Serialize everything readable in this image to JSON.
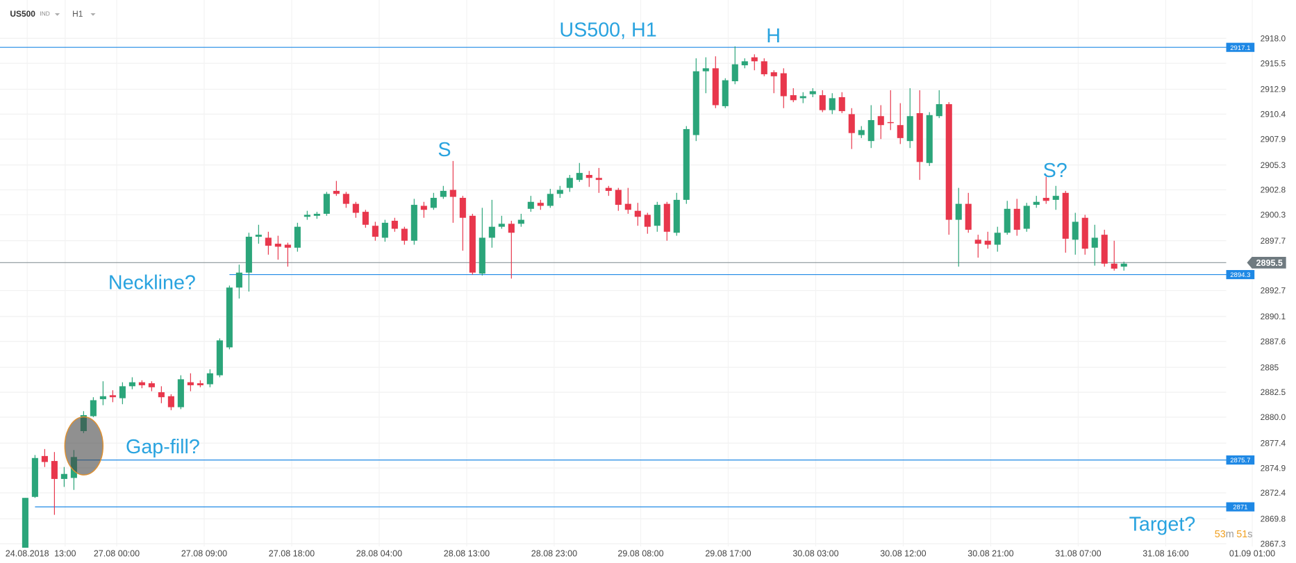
{
  "header": {
    "symbol": "US500",
    "market": "IND",
    "interval": "H1"
  },
  "countdown": [
    "53",
    "m",
    "51",
    "s"
  ],
  "chart_data": {
    "type": "candlestick",
    "annotations": [
      "US500, H1",
      "H",
      "S",
      "S?",
      "Neckline?",
      "Gap-fill?",
      "Target?"
    ],
    "up_color": "#2ba57a",
    "down_color": "#e8374c",
    "level_color": "#1e88e5",
    "grid": true,
    "xlim": [
      -2.6,
      130.7
    ],
    "xticks": [
      {
        "value": 0.2,
        "label": "24.08.2018"
      },
      {
        "value": 4.1,
        "label": "13:00"
      },
      {
        "value": 9.4,
        "label": "27.08  00:00"
      },
      {
        "value": 18.4,
        "label": "27.08  09:00"
      },
      {
        "value": 27.4,
        "label": "27.08  18:00"
      },
      {
        "value": 36.4,
        "label": "28.08  04:00"
      },
      {
        "value": 45.4,
        "label": "28.08  13:00"
      },
      {
        "value": 54.4,
        "label": "28.08  23:00"
      },
      {
        "value": 63.3,
        "label": "29.08  08:00"
      },
      {
        "value": 72.3,
        "label": "29.08  17:00"
      },
      {
        "value": 81.3,
        "label": "30.08  03:00"
      },
      {
        "value": 90.3,
        "label": "30.08  12:00"
      },
      {
        "value": 99.3,
        "label": "30.08  21:00"
      },
      {
        "value": 108.3,
        "label": "31.08  07:00"
      },
      {
        "value": 117.3,
        "label": "31.08  16:00"
      },
      {
        "value": 126.2,
        "label": "01.09  01:00"
      }
    ],
    "ylim": [
      2866.7,
      2920.6
    ],
    "yticks": [
      {
        "value": 2918.0,
        "label": "2918.0"
      },
      2915.5,
      2912.9,
      2910.4,
      2907.9,
      2905.3,
      2902.8,
      2900.3,
      2897.7,
      2892.7,
      2890.1,
      2887.6,
      2885,
      2882.5,
      {
        "value": 2880.0,
        "label": "2880.0"
      },
      2877.4,
      2874.9,
      2872.4,
      2869.8,
      2867.3
    ],
    "current_price": 2895.5,
    "levels": [
      {
        "value": 2917.1,
        "start": -2.6
      },
      {
        "value": 2894.3,
        "start": 21
      },
      {
        "value": 2875.7,
        "start": 5
      },
      {
        "value": 2871.0,
        "start": 1
      }
    ],
    "x": [
      0,
      1,
      2,
      3,
      4,
      5,
      6,
      7,
      8,
      9,
      10,
      11,
      12,
      13,
      14,
      15,
      16,
      17,
      18,
      19,
      20,
      21,
      22,
      23,
      24,
      25,
      26,
      27,
      28,
      29,
      30,
      31,
      32,
      33,
      34,
      35,
      36,
      37,
      38,
      39,
      40,
      41,
      42,
      43,
      44,
      45,
      46,
      47,
      48,
      49,
      50,
      51,
      52,
      53,
      54,
      55,
      56,
      57,
      58,
      59,
      60,
      61,
      62,
      63,
      64,
      65,
      66,
      67,
      68,
      69,
      70,
      71,
      72,
      73,
      74,
      75,
      76,
      77,
      78,
      79,
      80,
      81,
      82,
      83,
      84,
      85,
      86,
      87,
      88,
      89,
      90,
      91,
      92,
      93,
      94,
      95,
      96,
      97,
      98,
      99,
      100,
      101,
      102,
      103,
      104,
      105,
      106,
      107,
      108,
      109,
      110,
      111,
      112,
      113
    ],
    "open": [
      2866.9,
      2872.0,
      2876.1,
      2875.6,
      2873.8,
      2873.9,
      2878.6,
      2880.1,
      2881.8,
      2882.2,
      2881.9,
      2883.1,
      2883.5,
      2883.4,
      2882.5,
      2882.1,
      2881.0,
      2883.5,
      2883.4,
      2883.3,
      2884.2,
      2887.0,
      2893.0,
      2894.5,
      2898.1,
      2898.0,
      2897.4,
      2897.3,
      2897.0,
      2900.1,
      2900.2,
      2900.4,
      2902.7,
      2902.4,
      2901.4,
      2900.6,
      2899.2,
      2898.0,
      2899.7,
      2898.9,
      2897.7,
      2901.2,
      2901.0,
      2902.1,
      2902.8,
      2902.0,
      2900.2,
      2894.4,
      2898.0,
      2899.1,
      2899.4,
      2899.4,
      2900.9,
      2901.5,
      2901.2,
      2902.4,
      2903.0,
      2903.8,
      2904.3,
      2904.0,
      2903.0,
      2902.8,
      2901.4,
      2900.7,
      2900.3,
      2899.2,
      2901.4,
      2898.5,
      2901.8,
      2908.3,
      2914.7,
      2915.0,
      2911.2,
      2913.7,
      2915.3,
      2916.1,
      2915.7,
      2914.6,
      2914.5,
      2912.3,
      2912.0,
      2912.4,
      2912.3,
      2910.8,
      2912.1,
      2910.4,
      2908.3,
      2907.7,
      2910.2,
      2909.6,
      2909.3,
      2907.7,
      2910.5,
      2905.5,
      2910.2,
      2911.4,
      2899.8,
      2901.4,
      2897.8,
      2897.7,
      2897.3,
      2898.5,
      2900.9,
      2898.9,
      2901.3,
      2902.0,
      2901.8,
      2902.5,
      2897.8,
      2900.0,
      2897.0,
      2898.3,
      2895.4,
      2895.1
    ],
    "high": [
      2871.9,
      2876.2,
      2876.8,
      2876.5,
      2875.0,
      2876.7,
      2880.6,
      2882.0,
      2883.6,
      2882.7,
      2883.5,
      2884.0,
      2883.7,
      2883.6,
      2883.1,
      2882.3,
      2884.2,
      2884.4,
      2883.7,
      2884.8,
      2887.9,
      2893.2,
      2895.3,
      2898.5,
      2899.3,
      2898.6,
      2898.2,
      2897.5,
      2899.5,
      2900.7,
      2900.6,
      2902.6,
      2903.7,
      2902.6,
      2901.6,
      2900.8,
      2899.6,
      2899.8,
      2900.0,
      2899.1,
      2901.9,
      2901.6,
      2902.5,
      2903.2,
      2905.7,
      2902.2,
      2900.4,
      2901.0,
      2901.8,
      2900.2,
      2899.7,
      2900.4,
      2902.2,
      2901.8,
      2902.9,
      2903.2,
      2904.3,
      2905.5,
      2904.7,
      2905.0,
      2903.2,
      2903.0,
      2903.0,
      2901.5,
      2900.5,
      2901.6,
      2901.6,
      2902.5,
      2909.2,
      2916.0,
      2916.1,
      2916.2,
      2914.0,
      2917.2,
      2916.0,
      2916.4,
      2916.0,
      2914.8,
      2915.0,
      2913.0,
      2912.6,
      2913.0,
      2912.8,
      2912.5,
      2912.6,
      2911.0,
      2909.2,
      2911.3,
      2911.3,
      2912.8,
      2911.5,
      2913.0,
      2912.8,
      2910.6,
      2912.8,
      2911.6,
      2903.0,
      2902.5,
      2898.3,
      2898.6,
      2899.1,
      2901.7,
      2901.9,
      2901.5,
      2902.2,
      2904.1,
      2903.2,
      2902.7,
      2900.5,
      2900.3,
      2899.3,
      2898.8,
      2897.7,
      2895.6
    ],
    "low": [
      2866.9,
      2871.9,
      2875.0,
      2870.2,
      2873.0,
      2872.7,
      2878.4,
      2880.0,
      2881.2,
      2881.5,
      2881.3,
      2882.8,
      2882.9,
      2882.6,
      2881.4,
      2880.7,
      2880.8,
      2882.6,
      2883.0,
      2883.0,
      2884.0,
      2886.8,
      2891.9,
      2892.6,
      2897.4,
      2896.3,
      2895.8,
      2895.1,
      2896.6,
      2899.8,
      2899.9,
      2900.2,
      2902.2,
      2901.0,
      2900.0,
      2899.0,
      2897.7,
      2897.6,
      2898.6,
      2897.3,
      2897.3,
      2900.0,
      2900.8,
      2901.9,
      2899.5,
      2896.7,
      2894.3,
      2894.2,
      2897.0,
      2898.9,
      2893.9,
      2899.1,
      2900.6,
      2900.8,
      2901.0,
      2902.0,
      2902.6,
      2903.6,
      2903.1,
      2902.5,
      2902.2,
      2900.7,
      2900.4,
      2899.2,
      2898.4,
      2898.6,
      2897.7,
      2898.2,
      2901.4,
      2907.7,
      2912.5,
      2911.0,
      2911.0,
      2913.4,
      2915.0,
      2914.8,
      2914.2,
      2912.5,
      2911.0,
      2911.6,
      2911.5,
      2912.1,
      2910.6,
      2910.4,
      2910.5,
      2906.9,
      2908.0,
      2907.0,
      2907.9,
      2908.8,
      2907.4,
      2907.0,
      2903.8,
      2905.2,
      2910.0,
      2898.3,
      2895.1,
      2898.5,
      2896.0,
      2896.9,
      2896.6,
      2898.3,
      2898.2,
      2898.6,
      2901.0,
      2901.4,
      2900.8,
      2896.5,
      2896.3,
      2896.3,
      2895.2,
      2895.1,
      2894.7,
      2894.7
    ],
    "close": [
      2871.9,
      2875.9,
      2875.5,
      2873.8,
      2874.3,
      2876.0,
      2880.2,
      2881.7,
      2882.1,
      2882.0,
      2883.1,
      2883.5,
      2883.2,
      2883.0,
      2882.0,
      2881.0,
      2883.8,
      2883.2,
      2883.2,
      2884.4,
      2887.7,
      2893.0,
      2894.5,
      2898.1,
      2898.3,
      2897.2,
      2897.1,
      2897.0,
      2899.1,
      2900.3,
      2900.4,
      2902.4,
      2902.4,
      2901.4,
      2900.5,
      2899.3,
      2898.1,
      2899.5,
      2898.9,
      2897.7,
      2901.3,
      2900.8,
      2902.0,
      2902.7,
      2902.1,
      2900.0,
      2894.5,
      2898.0,
      2899.1,
      2899.4,
      2898.5,
      2899.8,
      2901.6,
      2901.2,
      2902.4,
      2902.8,
      2904.0,
      2904.5,
      2904.0,
      2903.8,
      2902.7,
      2901.3,
      2900.8,
      2900.1,
      2899.1,
      2901.3,
      2898.6,
      2901.8,
      2908.9,
      2914.7,
      2915.0,
      2911.3,
      2913.8,
      2915.4,
      2915.7,
      2915.7,
      2914.4,
      2914.2,
      2912.2,
      2911.8,
      2912.2,
      2912.7,
      2910.8,
      2912.0,
      2910.7,
      2908.5,
      2908.8,
      2909.8,
      2909.3,
      2909.5,
      2908.0,
      2910.2,
      2905.6,
      2910.3,
      2911.4,
      2899.8,
      2901.4,
      2898.8,
      2897.4,
      2897.3,
      2898.5,
      2900.9,
      2898.8,
      2901.2,
      2901.6,
      2901.7,
      2902.2,
      2897.9,
      2899.6,
      2896.9,
      2898.0,
      2895.4,
      2894.9,
      2895.4
    ]
  }
}
